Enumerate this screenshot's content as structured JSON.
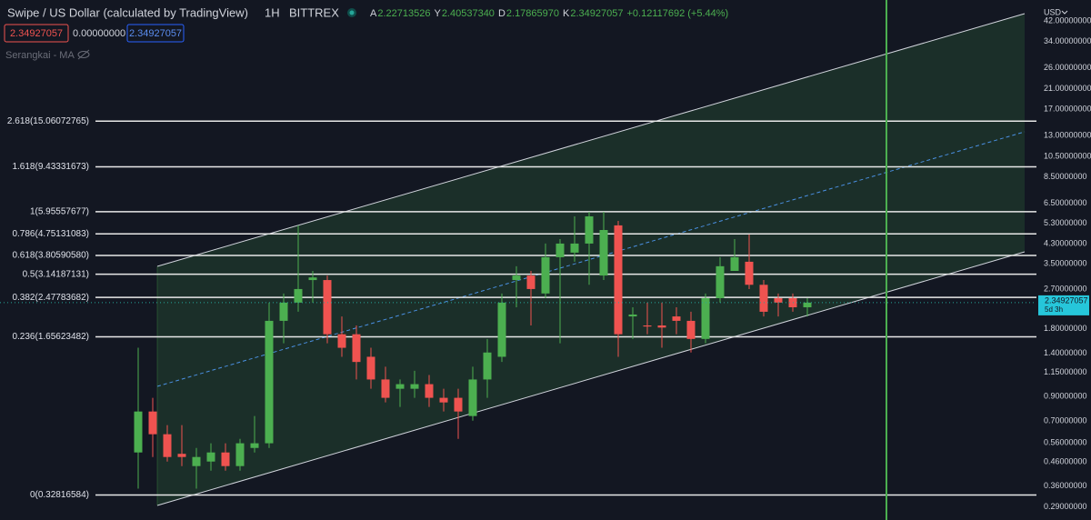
{
  "header": {
    "symbol": "Swipe / US Dollar (calculated by TradingView)",
    "interval": "1H",
    "exchange": "BITTREX",
    "ohlc": [
      {
        "key": "A",
        "value": "2.22713526"
      },
      {
        "key": "Y",
        "value": "2.40537340"
      },
      {
        "key": "D",
        "value": "2.17865970"
      },
      {
        "key": "K",
        "value": "2.34927057"
      }
    ],
    "change": "+0.12117692 (+5.44%)"
  },
  "order_boxes": [
    "2.34927057",
    "0.00000000",
    "2.34927057"
  ],
  "indicator": "Serangkai - MA",
  "currency": "USD",
  "chart_data": {
    "type": "candlestick",
    "log": true,
    "ylim": [
      0.254,
      52.0
    ],
    "yticks": [
      {
        "value": 42,
        "label": "42.00000000"
      },
      {
        "value": 34,
        "label": "34.00000000"
      },
      {
        "value": 26,
        "label": "26.00000000"
      },
      {
        "value": 21,
        "label": "21.00000000"
      },
      {
        "value": 17,
        "label": "17.00000000"
      },
      {
        "value": 13,
        "label": "13.00000000"
      },
      {
        "value": 10.5,
        "label": "10.50000000"
      },
      {
        "value": 8.5,
        "label": "8.50000000"
      },
      {
        "value": 6.5,
        "label": "6.50000000"
      },
      {
        "value": 5.3,
        "label": "5.30000000"
      },
      {
        "value": 4.3,
        "label": "4.30000000"
      },
      {
        "value": 3.5,
        "label": "3.50000000"
      },
      {
        "value": 2.7,
        "label": "2.70000000"
      },
      {
        "value": 1.8,
        "label": "1.80000000"
      },
      {
        "value": 1.4,
        "label": "1.40000000"
      },
      {
        "value": 1.15,
        "label": "1.15000000"
      },
      {
        "value": 0.9,
        "label": "0.90000000"
      },
      {
        "value": 0.7,
        "label": "0.70000000"
      },
      {
        "value": 0.56,
        "label": "0.56000000"
      },
      {
        "value": 0.46,
        "label": "0.46000000"
      },
      {
        "value": 0.36,
        "label": "0.36000000"
      },
      {
        "value": 0.29,
        "label": "0.29000000"
      }
    ],
    "up_color": "#4caf50",
    "down_color": "#ef5350",
    "candles": {
      "open": [
        0.507,
        0.771,
        0.611,
        0.5,
        0.441,
        0.462,
        0.507,
        0.441,
        0.531,
        0.557,
        1.95,
        2.35,
        2.96,
        2.96,
        1.7,
        1.7,
        1.35,
        1.07,
        0.973,
        0.973,
        1.02,
        0.887,
        0.887,
        0.736,
        1.07,
        1.35,
        2.96,
        3.1,
        2.58,
        3.74,
        3.92,
        4.3,
        3.1,
        5.18,
        2.04,
        1.86,
        1.86,
        2.04,
        1.95,
        1.62,
        2.46,
        3.25,
        3.57,
        2.82,
        2.46,
        2.46,
        2.24
      ],
      "high": [
        1.48,
        0.887,
        0.671,
        0.671,
        0.531,
        0.557,
        0.557,
        0.583,
        0.736,
        2.35,
        2.58,
        5.18,
        3.25,
        3.1,
        2.04,
        1.86,
        1.48,
        1.22,
        1.07,
        1.17,
        1.12,
        0.973,
        0.973,
        1.22,
        1.62,
        2.58,
        3.41,
        3.25,
        4.3,
        4.5,
        5.68,
        5.95,
        5.95,
        5.42,
        2.24,
        2.35,
        2.35,
        2.24,
        2.14,
        2.58,
        3.74,
        4.5,
        4.72,
        2.96,
        2.58,
        2.58,
        2.46
      ],
      "low": [
        0.35,
        0.484,
        0.462,
        0.441,
        0.35,
        0.421,
        0.421,
        0.421,
        0.507,
        0.531,
        1.55,
        2.14,
        2.35,
        1.55,
        1.35,
        1.07,
        0.973,
        0.846,
        0.808,
        0.887,
        0.808,
        0.771,
        0.583,
        0.702,
        0.887,
        1.28,
        2.24,
        1.86,
        2.46,
        1.55,
        3.57,
        2.82,
        2.96,
        1.35,
        1.62,
        1.7,
        1.48,
        1.7,
        1.41,
        1.55,
        2.35,
        3.25,
        2.7,
        2.04,
        2.04,
        2.14,
        2.04
      ],
      "close": [
        0.771,
        0.611,
        0.484,
        0.484,
        0.484,
        0.507,
        0.441,
        0.557,
        0.557,
        1.95,
        2.35,
        2.7,
        3.04,
        1.7,
        1.48,
        1.28,
        1.07,
        0.887,
        1.02,
        1.02,
        0.887,
        0.846,
        0.771,
        1.07,
        1.41,
        2.35,
        3.1,
        2.7,
        3.74,
        4.3,
        4.3,
        5.68,
        4.94,
        1.7,
        2.08,
        1.84,
        1.82,
        1.95,
        1.62,
        2.46,
        3.41,
        3.74,
        2.82,
        2.14,
        2.35,
        2.24,
        2.35
      ]
    },
    "fib_levels": [
      {
        "value": 15.06072765,
        "label": "2.618(15.06072765)"
      },
      {
        "value": 9.43331673,
        "label": "1.618(9.43331673)"
      },
      {
        "value": 5.95557677,
        "label": "1(5.95557677)"
      },
      {
        "value": 4.75131083,
        "label": "0.786(4.75131083)"
      },
      {
        "value": 3.8059058,
        "label": "0.618(3.80590580)"
      },
      {
        "value": 3.14187131,
        "label": "0.5(3.14187131)"
      },
      {
        "value": 2.47783682,
        "label": "0.382(2.47783682)"
      },
      {
        "value": 1.65623482,
        "label": "0.236(1.65623482)"
      },
      {
        "value": 0.32816584,
        "label": "0(0.32816584)"
      }
    ],
    "last_price": {
      "value": 2.34927057,
      "label": "2.34927057"
    },
    "countdown": "5d 3h"
  }
}
